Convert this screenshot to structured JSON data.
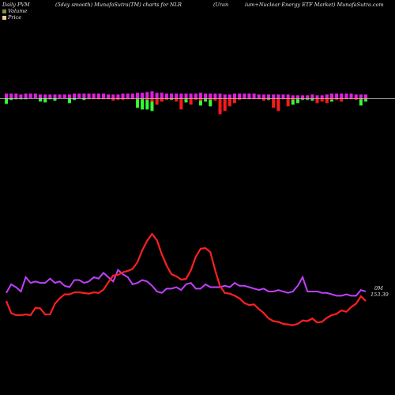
{
  "header": {
    "daily": "Daily PVM",
    "mode": "(5day smooth) MunafaSutra(TM) charts for NLR",
    "title_a": "(Uran",
    "title_b": "ium+Nuclear Energy ETF Market) MunafaSutra.com"
  },
  "legend": [
    {
      "label": "Volume",
      "color": "#8a8a3a"
    },
    {
      "label": "Price",
      "color": "#f2c9a0"
    }
  ],
  "end_labels": {
    "volume": "0M",
    "price": "153.39"
  },
  "colors": {
    "up": "#33ff33",
    "down": "#ff1a1a",
    "neutral": "#e020e0",
    "price_line": "#ff2020",
    "volume_line": "#c040ff",
    "axis": "#cccccc"
  },
  "chart_data": {
    "type": "line",
    "x": [
      1,
      2,
      3,
      4,
      5,
      6,
      7,
      8,
      9,
      10,
      11,
      12,
      13,
      14,
      15,
      16,
      17,
      18,
      19,
      20,
      21,
      22,
      23,
      24,
      25,
      26,
      27,
      28,
      29,
      30,
      31,
      32,
      33,
      34,
      35,
      36,
      37,
      38,
      39,
      40,
      41,
      42,
      43,
      44,
      45,
      46,
      47,
      48,
      49,
      50,
      51,
      52,
      53,
      54,
      55,
      56,
      57,
      58,
      59,
      60,
      61,
      62,
      63,
      64,
      65,
      66,
      67,
      68,
      69,
      70,
      71,
      72,
      73,
      74,
      75
    ],
    "series": [
      {
        "values": [
          100,
          82,
          79,
          79,
          80,
          79,
          90,
          89,
          80,
          80,
          96,
          104,
          110,
          110,
          113,
          113,
          112,
          111,
          113,
          112,
          117,
          128,
          138,
          139,
          143,
          145,
          148,
          158,
          176,
          190,
          200,
          191,
          170,
          153,
          140,
          137,
          132,
          133,
          146,
          166,
          178,
          179,
          173,
          146,
          122,
          112,
          111,
          108,
          104,
          97,
          94,
          95,
          88,
          82,
          74,
          70,
          69,
          66,
          65,
          64,
          66,
          71,
          70,
          74,
          68,
          69,
          75,
          79,
          81,
          86,
          84,
          91,
          96,
          107,
          100
        ]
      },
      {
        "values": [
          1.2,
          1.8,
          1.6,
          1.3,
          2.3,
          1.9,
          2.0,
          1.9,
          1.9,
          2.2,
          1.9,
          2.0,
          1.7,
          1.6,
          2.1,
          2.1,
          1.9,
          2.0,
          2.3,
          2.2,
          2.6,
          2.3,
          2.0,
          2.8,
          2.5,
          2.3,
          1.8,
          1.9,
          2.1,
          2.0,
          1.7,
          1.3,
          1.2,
          1.5,
          1.5,
          1.6,
          1.4,
          1.8,
          1.9,
          1.5,
          1.5,
          1.8,
          1.6,
          1.6,
          1.6,
          1.7,
          1.6,
          1.9,
          1.7,
          1.7,
          1.6,
          1.5,
          1.4,
          1.5,
          1.3,
          1.3,
          1.4,
          1.3,
          1.2,
          1.3,
          1.7,
          2.3,
          1.3,
          1.3,
          1.3,
          1.2,
          1.2,
          1.1,
          1.0,
          1.0,
          1.1,
          1.0,
          1.0,
          1.4,
          1.3
        ]
      }
    ],
    "bars": {
      "up": [
        7,
        2,
        1,
        1,
        1,
        0,
        0,
        4,
        5,
        1,
        3,
        0,
        0,
        6,
        2,
        0,
        2,
        0,
        0,
        0,
        0,
        0,
        0,
        0,
        0,
        0,
        0,
        12,
        14,
        14,
        16,
        0,
        4,
        0,
        2,
        1,
        0,
        5,
        0,
        0,
        9,
        4,
        10,
        0,
        0,
        0,
        0,
        0,
        0,
        0,
        0,
        0,
        0,
        0,
        2,
        0,
        0,
        0,
        0,
        8,
        6,
        2,
        2,
        3,
        0,
        1,
        2,
        4,
        1,
        0,
        0,
        0,
        0,
        9,
        4
      ],
      "down": [
        0,
        0,
        0,
        0,
        0,
        0,
        0,
        0,
        0,
        0,
        0,
        0,
        0,
        0,
        0,
        0,
        0,
        1,
        1,
        1,
        1,
        1,
        3,
        2,
        2,
        1,
        1,
        1,
        1,
        2,
        4,
        8,
        4,
        2,
        1,
        4,
        14,
        1,
        8,
        2,
        3,
        1,
        2,
        3,
        20,
        16,
        10,
        6,
        2,
        1,
        1,
        1,
        1,
        3,
        1,
        12,
        16,
        1,
        10,
        2,
        1,
        1,
        1,
        1,
        6,
        4,
        6,
        2,
        2,
        4,
        1,
        1,
        2,
        1,
        1
      ],
      "mag": [
        6,
        6,
        6,
        5,
        6,
        6,
        6,
        5,
        5,
        5,
        5,
        5,
        5,
        5,
        6,
        6,
        6,
        6,
        6,
        6,
        6,
        5,
        5,
        5,
        6,
        6,
        6,
        7,
        7,
        8,
        9,
        7,
        7,
        6,
        6,
        6,
        6,
        6,
        6,
        6,
        7,
        6,
        6,
        6,
        6,
        5,
        5,
        6,
        6,
        6,
        6,
        6,
        5,
        5,
        5,
        5,
        5,
        5,
        5,
        4,
        4,
        4,
        4,
        5,
        4,
        4,
        5,
        6,
        6,
        6,
        6,
        6,
        5,
        5,
        5
      ]
    }
  }
}
